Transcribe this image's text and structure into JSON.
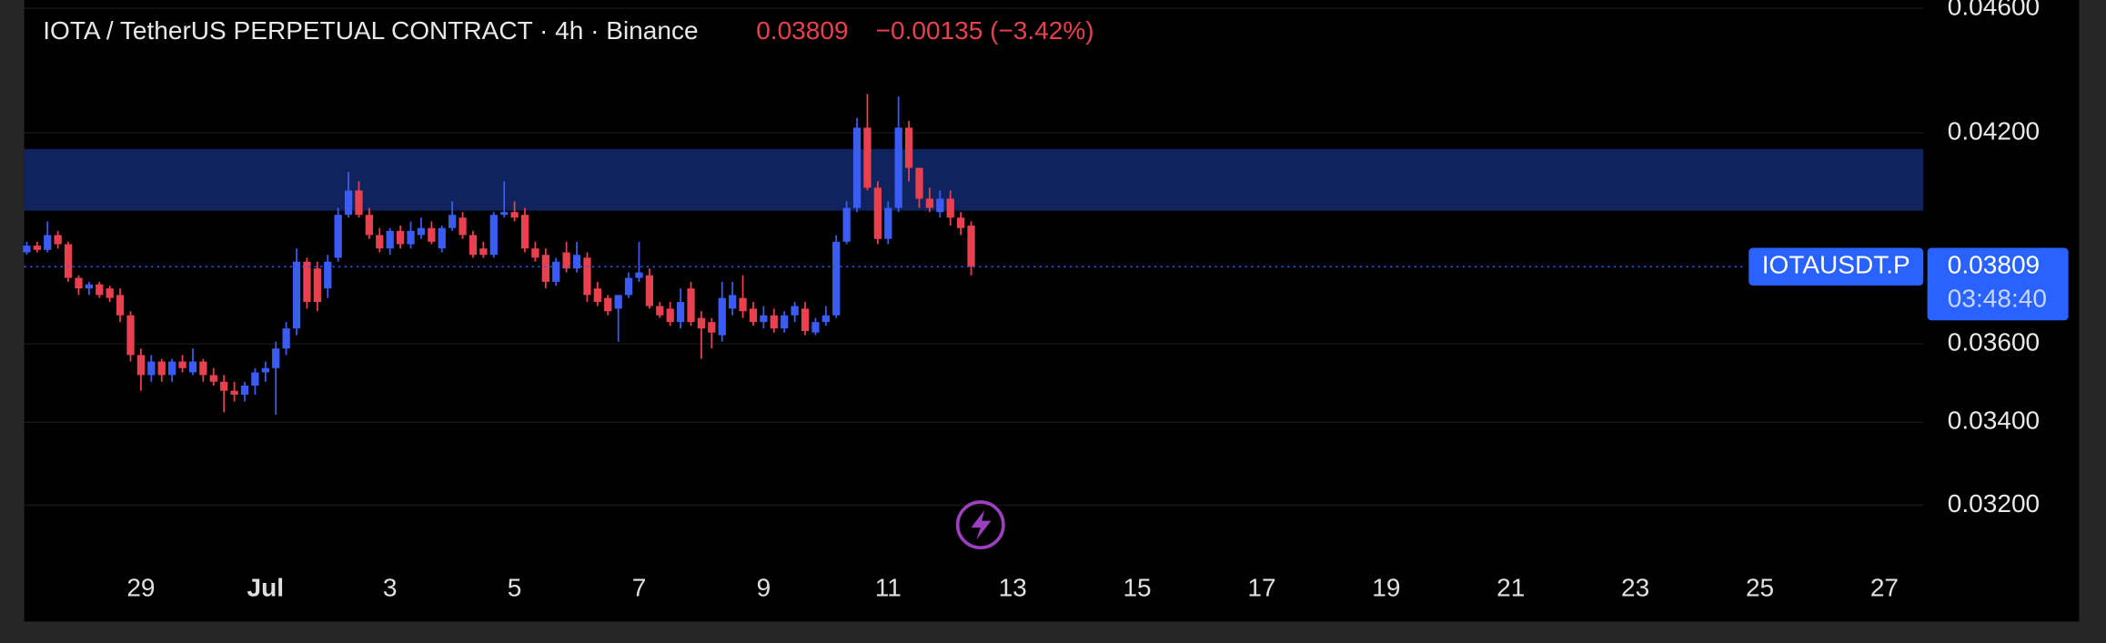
{
  "chart_data": {
    "type": "candlestick",
    "title": "IOTA / TetherUS PERPETUAL CONTRACT · 4h · Binance",
    "last_price": 0.03809,
    "change_label": "−0.00135 (−3.42%)",
    "symbol": "IOTAUSDT.P",
    "countdown": "03:48:40",
    "log_scale": true,
    "up_color": "#3a5cf2",
    "down_color": "#e8404f",
    "zone_color": "#10235e",
    "zone": [
      0.03968,
      0.04151
    ],
    "ylim": [
      0.03066,
      0.04628
    ],
    "yticks": [
      {
        "value": 0.046,
        "label": "0.04600"
      },
      {
        "value": 0.042,
        "label": "0.04200"
      },
      {
        "value": 0.036,
        "label": "0.03600"
      },
      {
        "value": 0.034,
        "label": "0.03400"
      },
      {
        "value": 0.032,
        "label": "0.03200"
      }
    ],
    "xlim": [
      "06-27 03:00",
      "07-27 15:00"
    ],
    "xticks": [
      {
        "value": "06-29",
        "label": "29"
      },
      {
        "value": "07-01",
        "label": "Jul"
      },
      {
        "value": "07-03",
        "label": "3"
      },
      {
        "value": "07-05",
        "label": "5"
      },
      {
        "value": "07-07",
        "label": "7"
      },
      {
        "value": "07-09",
        "label": "9"
      },
      {
        "value": "07-11",
        "label": "11"
      },
      {
        "value": "07-13",
        "label": "13"
      },
      {
        "value": "07-15",
        "label": "15"
      },
      {
        "value": "07-17",
        "label": "17"
      },
      {
        "value": "07-19",
        "label": "19"
      },
      {
        "value": "07-21",
        "label": "21"
      },
      {
        "value": "07-23",
        "label": "23"
      },
      {
        "value": "07-25",
        "label": "25"
      },
      {
        "value": "07-27",
        "label": "27"
      }
    ],
    "x": [
      "06-27 04:00",
      "06-27 08:00",
      "06-27 12:00",
      "06-27 16:00",
      "06-27 20:00",
      "06-28 00:00",
      "06-28 04:00",
      "06-28 08:00",
      "06-28 12:00",
      "06-28 16:00",
      "06-28 20:00",
      "06-29 00:00",
      "06-29 04:00",
      "06-29 08:00",
      "06-29 12:00",
      "06-29 16:00",
      "06-29 20:00",
      "06-30 00:00",
      "06-30 04:00",
      "06-30 08:00",
      "06-30 12:00",
      "06-30 16:00",
      "06-30 20:00",
      "07-01 00:00",
      "07-01 04:00",
      "07-01 08:00",
      "07-01 12:00",
      "07-01 16:00",
      "07-01 20:00",
      "07-02 00:00",
      "07-02 04:00",
      "07-02 08:00",
      "07-02 12:00",
      "07-02 16:00",
      "07-02 20:00",
      "07-03 00:00",
      "07-03 04:00",
      "07-03 08:00",
      "07-03 12:00",
      "07-03 16:00",
      "07-03 20:00",
      "07-04 00:00",
      "07-04 04:00",
      "07-04 08:00",
      "07-04 12:00",
      "07-04 16:00",
      "07-04 20:00",
      "07-05 00:00",
      "07-05 04:00",
      "07-05 08:00",
      "07-05 12:00",
      "07-05 16:00",
      "07-05 20:00",
      "07-06 00:00",
      "07-06 04:00",
      "07-06 08:00",
      "07-06 12:00",
      "07-06 16:00",
      "07-06 20:00",
      "07-07 00:00",
      "07-07 04:00",
      "07-07 08:00",
      "07-07 12:00",
      "07-07 16:00",
      "07-07 20:00",
      "07-08 00:00",
      "07-08 04:00",
      "07-08 08:00",
      "07-08 12:00",
      "07-08 16:00",
      "07-08 20:00",
      "07-09 00:00",
      "07-09 04:00",
      "07-09 08:00",
      "07-09 12:00",
      "07-09 16:00",
      "07-09 20:00",
      "07-10 00:00",
      "07-10 04:00",
      "07-10 08:00",
      "07-10 12:00",
      "07-10 16:00",
      "07-10 20:00",
      "07-11 00:00",
      "07-11 04:00",
      "07-11 08:00",
      "07-11 12:00",
      "07-11 16:00",
      "07-11 20:00",
      "07-12 00:00",
      "07-12 04:00",
      "07-12 08:00"
    ],
    "candles": [
      [
        0.03849,
        0.03879,
        0.03842,
        0.03868
      ],
      [
        0.03868,
        0.03879,
        0.03849,
        0.03856
      ],
      [
        0.03856,
        0.03937,
        0.03849,
        0.03898
      ],
      [
        0.03898,
        0.0391,
        0.0386,
        0.03872
      ],
      [
        0.03872,
        0.03879,
        0.03767,
        0.03778
      ],
      [
        0.03778,
        0.03785,
        0.03731,
        0.03749
      ],
      [
        0.03749,
        0.03767,
        0.03731,
        0.0376
      ],
      [
        0.0376,
        0.03767,
        0.03723,
        0.03731
      ],
      [
        0.03749,
        0.03756,
        0.03712,
        0.03723
      ],
      [
        0.03731,
        0.03749,
        0.03658,
        0.03676
      ],
      [
        0.03676,
        0.03687,
        0.03554,
        0.03571
      ],
      [
        0.03571,
        0.03588,
        0.03479,
        0.03519
      ],
      [
        0.03519,
        0.03571,
        0.03502,
        0.03554
      ],
      [
        0.03554,
        0.03561,
        0.03502,
        0.03519
      ],
      [
        0.03519,
        0.03561,
        0.03502,
        0.03554
      ],
      [
        0.03554,
        0.03571,
        0.03526,
        0.03537
      ],
      [
        0.03526,
        0.03588,
        0.03519,
        0.03554
      ],
      [
        0.03554,
        0.03561,
        0.03502,
        0.03519
      ],
      [
        0.03519,
        0.03537,
        0.03492,
        0.03502
      ],
      [
        0.03502,
        0.03519,
        0.03425,
        0.03479
      ],
      [
        0.03479,
        0.03502,
        0.03452,
        0.03469
      ],
      [
        0.03469,
        0.03502,
        0.03452,
        0.03492
      ],
      [
        0.03492,
        0.03537,
        0.03469,
        0.03526
      ],
      [
        0.03526,
        0.03554,
        0.03502,
        0.03537
      ],
      [
        0.03537,
        0.03606,
        0.03419,
        0.03588
      ],
      [
        0.03588,
        0.03658,
        0.03571,
        0.03641
      ],
      [
        0.03641,
        0.0386,
        0.03623,
        0.03823
      ],
      [
        0.03823,
        0.03834,
        0.03694,
        0.03712
      ],
      [
        0.03804,
        0.03823,
        0.03687,
        0.03712
      ],
      [
        0.03749,
        0.03842,
        0.03723,
        0.03823
      ],
      [
        0.03834,
        0.03976,
        0.03823,
        0.03956
      ],
      [
        0.03956,
        0.04082,
        0.03948,
        0.04027
      ],
      [
        0.04027,
        0.04054,
        0.03948,
        0.03956
      ],
      [
        0.03956,
        0.03976,
        0.03887,
        0.03898
      ],
      [
        0.03898,
        0.03918,
        0.03849,
        0.0386
      ],
      [
        0.0386,
        0.03918,
        0.03842,
        0.0391
      ],
      [
        0.0391,
        0.03925,
        0.0386,
        0.03872
      ],
      [
        0.03872,
        0.03937,
        0.0386,
        0.0391
      ],
      [
        0.03898,
        0.03948,
        0.03887,
        0.03918
      ],
      [
        0.03918,
        0.03937,
        0.03872,
        0.03879
      ],
      [
        0.0386,
        0.03925,
        0.03849,
        0.03918
      ],
      [
        0.03918,
        0.03995,
        0.0391,
        0.03956
      ],
      [
        0.03948,
        0.03964,
        0.03887,
        0.03898
      ],
      [
        0.03898,
        0.0391,
        0.03834,
        0.03842
      ],
      [
        0.0386,
        0.03879,
        0.03834,
        0.03842
      ],
      [
        0.03842,
        0.03964,
        0.03834,
        0.03956
      ],
      [
        0.03956,
        0.04054,
        0.03948,
        0.03964
      ],
      [
        0.03964,
        0.03995,
        0.03937,
        0.03948
      ],
      [
        0.03956,
        0.03976,
        0.03849,
        0.0386
      ],
      [
        0.0386,
        0.03879,
        0.03823,
        0.03834
      ],
      [
        0.03842,
        0.0386,
        0.03749,
        0.03767
      ],
      [
        0.03767,
        0.03834,
        0.03756,
        0.03823
      ],
      [
        0.03849,
        0.03879,
        0.03793,
        0.03804
      ],
      [
        0.03804,
        0.03879,
        0.03793,
        0.03842
      ],
      [
        0.03834,
        0.03849,
        0.03712,
        0.03731
      ],
      [
        0.03749,
        0.03767,
        0.03701,
        0.03712
      ],
      [
        0.03723,
        0.03731,
        0.03676,
        0.03687
      ],
      [
        0.03694,
        0.03731,
        0.03606,
        0.03731
      ],
      [
        0.03731,
        0.03793,
        0.03723,
        0.03778
      ],
      [
        0.03778,
        0.03879,
        0.03767,
        0.03793
      ],
      [
        0.03785,
        0.03804,
        0.03694,
        0.03701
      ],
      [
        0.03701,
        0.03712,
        0.03669,
        0.03676
      ],
      [
        0.03694,
        0.03712,
        0.03648,
        0.03658
      ],
      [
        0.03658,
        0.03749,
        0.03641,
        0.03712
      ],
      [
        0.03749,
        0.03767,
        0.03648,
        0.03658
      ],
      [
        0.03669,
        0.03687,
        0.03561,
        0.03641
      ],
      [
        0.03658,
        0.03669,
        0.03588,
        0.0363
      ],
      [
        0.03623,
        0.03767,
        0.03606,
        0.03723
      ],
      [
        0.03694,
        0.03767,
        0.03676,
        0.03731
      ],
      [
        0.03723,
        0.03785,
        0.03669,
        0.03687
      ],
      [
        0.03694,
        0.03712,
        0.03648,
        0.03658
      ],
      [
        0.03658,
        0.03701,
        0.03641,
        0.03676
      ],
      [
        0.03676,
        0.03694,
        0.0363,
        0.03641
      ],
      [
        0.03641,
        0.03687,
        0.0363,
        0.03676
      ],
      [
        0.03676,
        0.03712,
        0.03658,
        0.03701
      ],
      [
        0.03694,
        0.03712,
        0.03623,
        0.03634
      ],
      [
        0.0363,
        0.03669,
        0.03623,
        0.03658
      ],
      [
        0.03658,
        0.03701,
        0.03648,
        0.03676
      ],
      [
        0.03676,
        0.03898,
        0.03669,
        0.03879
      ],
      [
        0.03879,
        0.03995,
        0.03872,
        0.03976
      ],
      [
        0.03976,
        0.04246,
        0.03964,
        0.04216
      ],
      [
        0.04216,
        0.04321,
        0.04027,
        0.04035
      ],
      [
        0.04035,
        0.04054,
        0.03872,
        0.03887
      ],
      [
        0.03887,
        0.03995,
        0.03872,
        0.03976
      ],
      [
        0.03976,
        0.04313,
        0.03964,
        0.04216
      ],
      [
        0.04216,
        0.04237,
        0.04054,
        0.04094
      ],
      [
        0.04094,
        0.04094,
        0.03976,
        0.04003
      ],
      [
        0.04003,
        0.04035,
        0.03964,
        0.03976
      ],
      [
        0.03964,
        0.04027,
        0.03948,
        0.04003
      ],
      [
        0.04003,
        0.04027,
        0.03925,
        0.03948
      ],
      [
        0.03948,
        0.03964,
        0.03898,
        0.03918
      ],
      [
        0.03925,
        0.03937,
        0.03785,
        0.03809
      ]
    ]
  }
}
